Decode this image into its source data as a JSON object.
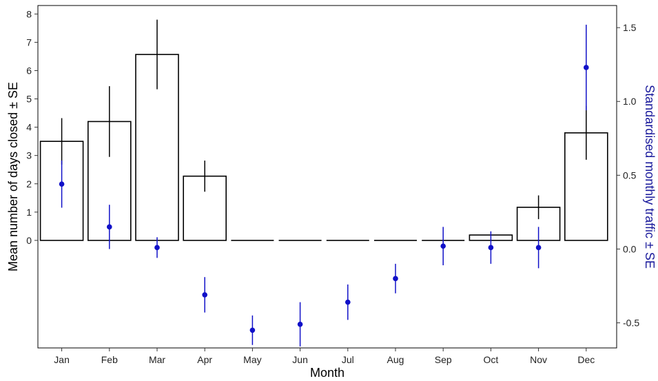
{
  "chart_data": {
    "type": "bar",
    "xlabel": "Month",
    "ylabel": "Mean number of days closed ± SE",
    "y2label": "Standardised monthly traffic ± SE",
    "categories": [
      "Jan",
      "Feb",
      "Mar",
      "Apr",
      "May",
      "Jun",
      "Jul",
      "Aug",
      "Sep",
      "Oct",
      "Nov",
      "Dec"
    ],
    "ylim": [
      -3.8,
      8.3
    ],
    "yticks": [
      0,
      1,
      2,
      3,
      4,
      5,
      6,
      7,
      8
    ],
    "y2lim": [
      -0.67,
      1.65
    ],
    "y2ticks": [
      -0.5,
      0.0,
      0.5,
      1.0,
      1.5
    ],
    "y2tick_labels": [
      "-0.5",
      "0.0",
      "0.5",
      "1.0",
      "1.5"
    ],
    "grid": false,
    "series": [
      {
        "mark": "bar",
        "axis": "left",
        "values": [
          3.5,
          4.2,
          6.57,
          2.27,
          0,
          0,
          0,
          0,
          0,
          0.19,
          1.17,
          3.8
        ],
        "se": [
          0.82,
          1.25,
          1.23,
          0.55,
          0,
          0,
          0,
          0,
          0,
          0,
          0.42,
          0.95
        ]
      },
      {
        "mark": "point",
        "axis": "right",
        "color": "#1010c8",
        "values": [
          0.44,
          0.15,
          0.01,
          -0.31,
          -0.55,
          -0.51,
          -0.36,
          -0.2,
          0.02,
          0.01,
          0.01,
          1.23
        ],
        "se": [
          0.16,
          0.15,
          0.07,
          0.12,
          0.1,
          0.15,
          0.12,
          0.1,
          0.13,
          0.11,
          0.14,
          0.29
        ]
      }
    ]
  }
}
